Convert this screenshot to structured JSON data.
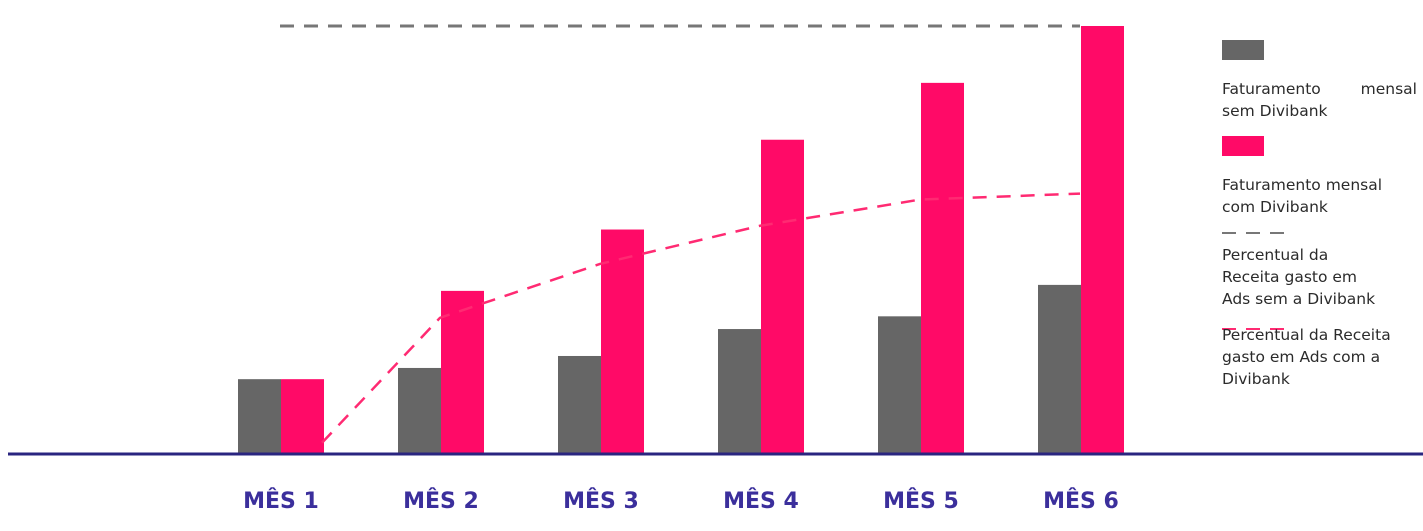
{
  "chart_data": {
    "type": "bar",
    "categories": [
      "MÊS 1",
      "MÊS 2",
      "MÊS 3",
      "MÊS 4",
      "MÊS 5",
      "MÊS 6"
    ],
    "series": [
      {
        "name": "Faturamento mensal sem Divibank",
        "values": [
          100,
          115,
          131,
          167,
          184,
          226
        ],
        "color": "#666666"
      },
      {
        "name": "Faturamento mensal com Divibank",
        "values": [
          100,
          218,
          300,
          420,
          496,
          572
        ],
        "color": "#ff0a67"
      }
    ],
    "lines": [
      {
        "name": "Percentual da Receita gasto em Ads sem a Divibank",
        "values": [
          572,
          572,
          572,
          572,
          572,
          572
        ],
        "color": "#777777",
        "style": "dashed"
      },
      {
        "name": "Percentual da Receita gasto em Ads com a Divibank",
        "values": [
          15,
          182,
          254,
          305,
          340,
          348
        ],
        "color": "#ff2a72",
        "style": "dashed"
      }
    ],
    "ylim": [
      0,
      600
    ],
    "grid": false,
    "legend": "right",
    "axis_color": "#2a2580"
  },
  "legend": {
    "items": [
      {
        "label": "Faturamento mensal sem Divibank",
        "kind": "swatch",
        "color": "#666666"
      },
      {
        "label": "Faturamento mensal com Divibank",
        "kind": "swatch",
        "color": "#ff0a67"
      },
      {
        "label": "Percentual da Receita gasto em Ads sem a Divibank",
        "kind": "dash",
        "color": "#777777"
      },
      {
        "label": "Percentual da Receita gasto em Ads com a Divibank",
        "kind": "dash",
        "color": "#ff2a72"
      }
    ]
  }
}
